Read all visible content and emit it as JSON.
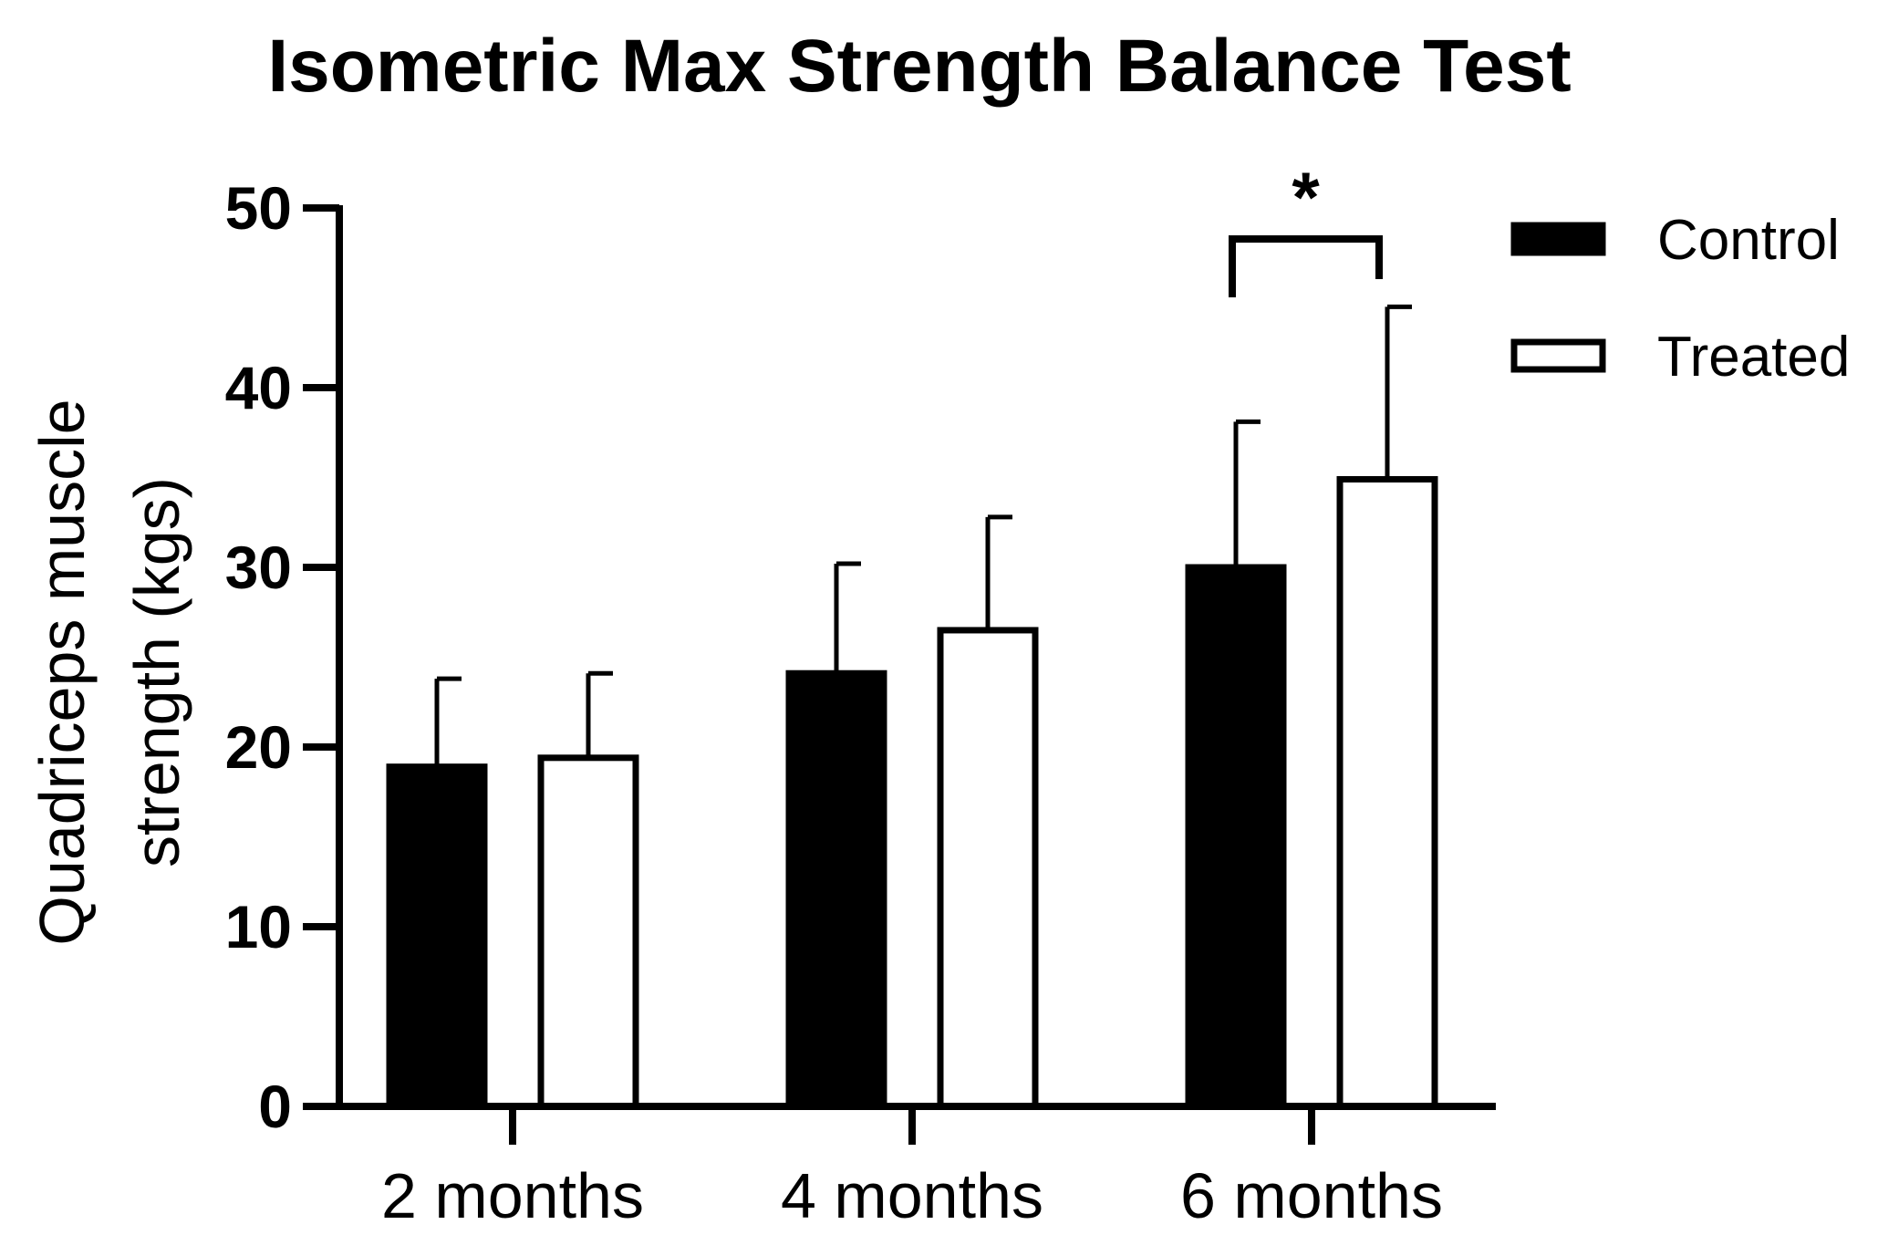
{
  "chart_data": {
    "type": "bar",
    "title": "Isometric Max Strength Balance Test",
    "ylabel_line1": "Quadriceps muscle",
    "ylabel_line2": "strength (kgs)",
    "xlabel": "",
    "ylim": [
      0,
      50
    ],
    "yticks": [
      0,
      10,
      20,
      30,
      40,
      50
    ],
    "ytick_labels": [
      "0",
      "10",
      "20",
      "30",
      "40",
      "50"
    ],
    "categories": [
      "2 months",
      "4 months",
      "6 months"
    ],
    "series": [
      {
        "name": "Control",
        "fill": "#000000",
        "values": [
          18.9,
          24.1,
          30.0
        ],
        "errors": [
          4.9,
          6.1,
          8.1
        ]
      },
      {
        "name": "Treated",
        "fill": "#ffffff",
        "values": [
          19.4,
          26.5,
          34.9
        ],
        "errors": [
          4.7,
          6.3,
          9.6
        ]
      }
    ],
    "legend_position": "top-right",
    "annotations": [
      {
        "type": "significance",
        "category": "6 months",
        "label": "*"
      }
    ]
  }
}
